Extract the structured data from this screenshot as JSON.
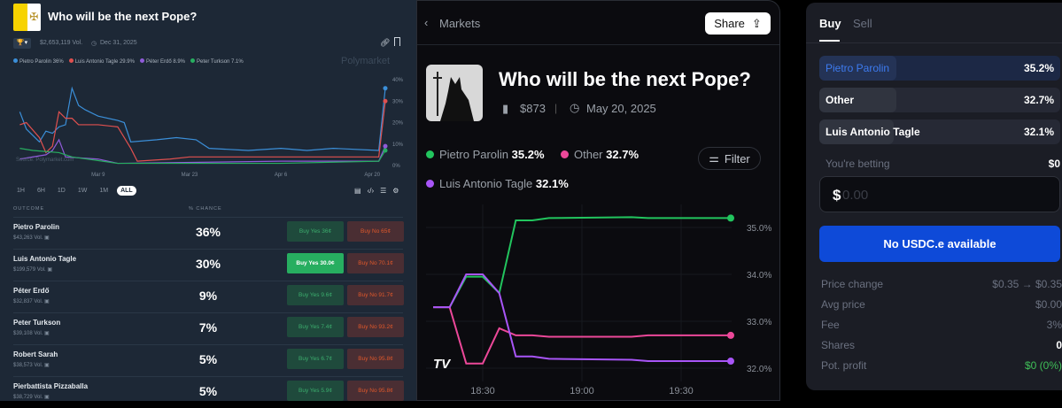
{
  "left": {
    "title": "Who will be the next Pope?",
    "volume": "$2,653,119 Vol.",
    "end_date": "Dec 31, 2025",
    "watermark": "Polymarket",
    "source": "Source: Polymarket.com",
    "legend": [
      {
        "name": "Pietro Parolin 36%",
        "color": "#3b8fd9"
      },
      {
        "name": "Luis Antonio Tagle 29.9%",
        "color": "#e0504f"
      },
      {
        "name": "Péter Erdő 8.9%",
        "color": "#8f5bd9"
      },
      {
        "name": "Peter Turkson 7.1%",
        "color": "#27ae60"
      }
    ],
    "timeframes": [
      "1H",
      "6H",
      "1D",
      "1W",
      "1M",
      "ALL"
    ],
    "active_timeframe": "ALL",
    "col_outcome": "OUTCOME",
    "col_chance": "% CHANCE",
    "rows": [
      {
        "name": "Pietro Parolin",
        "vol": "$43,263 Vol.",
        "chance": "36%",
        "yes": "Buy Yes 36¢",
        "no": "Buy No 65¢"
      },
      {
        "name": "Luis Antonio Tagle",
        "vol": "$199,579 Vol.",
        "chance": "30%",
        "yes": "Buy Yes 30.0¢",
        "no": "Buy No 70.1¢"
      },
      {
        "name": "Péter Erdő",
        "vol": "$32,837 Vol.",
        "chance": "9%",
        "yes": "Buy Yes 9.6¢",
        "no": "Buy No 91.7¢"
      },
      {
        "name": "Peter Turkson",
        "vol": "$39,108 Vol.",
        "chance": "7%",
        "yes": "Buy Yes 7.4¢",
        "no": "Buy No 93.2¢"
      },
      {
        "name": "Robert Sarah",
        "vol": "$38,573 Vol.",
        "chance": "5%",
        "yes": "Buy Yes 6.7¢",
        "no": "Buy No 95.8¢"
      },
      {
        "name": "Pierbattista Pizzaballa",
        "vol": "$38,729 Vol.",
        "chance": "5%",
        "yes": "Buy Yes 5.9¢",
        "no": "Buy No 95.8¢"
      }
    ]
  },
  "middle": {
    "back": "Markets",
    "share": "Share",
    "title": "Who will be the next Pope?",
    "volume": "$873",
    "date": "May 20, 2025",
    "filter": "Filter",
    "legend": [
      {
        "name": "Pietro Parolin",
        "value": "35.2%",
        "color": "#22c55e"
      },
      {
        "name": "Other",
        "value": "32.7%",
        "color": "#ec4899"
      },
      {
        "name": "Luis Antonio Tagle",
        "value": "32.1%",
        "color": "#a855f7"
      }
    ]
  },
  "right": {
    "tabs": [
      "Buy",
      "Sell"
    ],
    "active_tab": "Buy",
    "options": [
      {
        "name": "Pietro Parolin",
        "pct": "35.2%",
        "value": 35.2,
        "selected": true
      },
      {
        "name": "Other",
        "pct": "32.7%",
        "value": 32.7
      },
      {
        "name": "Luis Antonio Tagle",
        "pct": "32.1%",
        "value": 32.1
      }
    ],
    "betting_label": "You're betting",
    "betting_value": "$0",
    "amount_prefix": "$",
    "amount_placeholder": "0.00",
    "cta": "No USDC.e available",
    "stats": [
      {
        "k": "Price change",
        "v": "$0.35 → $0.35"
      },
      {
        "k": "Avg price",
        "v": "$0.00"
      },
      {
        "k": "Fee",
        "v": "3%"
      },
      {
        "k": "Shares",
        "v": "0"
      },
      {
        "k": "Pot. profit",
        "v": "$0 (0%)"
      }
    ]
  },
  "chart_data": [
    {
      "type": "line",
      "xlim": [
        "2025-02-24",
        "2025-04-22"
      ],
      "ylim": [
        0,
        40
      ],
      "yticks": [
        "0%",
        "10%",
        "20%",
        "30%",
        "40%"
      ],
      "xticks": [
        "Mar 9",
        "Mar 23",
        "Apr 6",
        "Apr 20"
      ],
      "series": [
        {
          "name": "Pietro Parolin",
          "color": "#3b8fd9",
          "points": [
            [
              "2025-02-25",
              25
            ],
            [
              "2025-02-26",
              17
            ],
            [
              "2025-02-28",
              11
            ],
            [
              "2025-03-01",
              16
            ],
            [
              "2025-03-02",
              15
            ],
            [
              "2025-03-03",
              18
            ],
            [
              "2025-03-04",
              19
            ],
            [
              "2025-03-05",
              36
            ],
            [
              "2025-03-06",
              28
            ],
            [
              "2025-03-07",
              26
            ],
            [
              "2025-03-09",
              23
            ],
            [
              "2025-03-12",
              21
            ],
            [
              "2025-03-13",
              20
            ],
            [
              "2025-03-14",
              11
            ],
            [
              "2025-03-18",
              12
            ],
            [
              "2025-03-21",
              13
            ],
            [
              "2025-03-24",
              12
            ],
            [
              "2025-03-26",
              8
            ],
            [
              "2025-04-01",
              7
            ],
            [
              "2025-04-06",
              8
            ],
            [
              "2025-04-10",
              7
            ],
            [
              "2025-04-14",
              8
            ],
            [
              "2025-04-21",
              7
            ],
            [
              "2025-04-22",
              36
            ]
          ]
        },
        {
          "name": "Luis Antonio Tagle",
          "color": "#e0504f",
          "points": [
            [
              "2025-02-25",
              19
            ],
            [
              "2025-02-26",
              20
            ],
            [
              "2025-02-28",
              13
            ],
            [
              "2025-03-01",
              6
            ],
            [
              "2025-03-02",
              9
            ],
            [
              "2025-03-03",
              25
            ],
            [
              "2025-03-04",
              22
            ],
            [
              "2025-03-05",
              22
            ],
            [
              "2025-03-06",
              19
            ],
            [
              "2025-03-09",
              19
            ],
            [
              "2025-03-12",
              18
            ],
            [
              "2025-03-14",
              8
            ],
            [
              "2025-03-15",
              2
            ],
            [
              "2025-03-20",
              3
            ],
            [
              "2025-03-23",
              4
            ],
            [
              "2025-04-06",
              4
            ],
            [
              "2025-04-21",
              4
            ],
            [
              "2025-04-22",
              30
            ]
          ]
        },
        {
          "name": "Péter Erdő",
          "color": "#8f5bd9",
          "points": [
            [
              "2025-02-25",
              3
            ],
            [
              "2025-03-01",
              5
            ],
            [
              "2025-03-02",
              7
            ],
            [
              "2025-03-03",
              12
            ],
            [
              "2025-03-04",
              4
            ],
            [
              "2025-03-09",
              3
            ],
            [
              "2025-03-12",
              1
            ],
            [
              "2025-04-06",
              2
            ],
            [
              "2025-04-21",
              2
            ],
            [
              "2025-04-22",
              9
            ]
          ]
        },
        {
          "name": "Peter Turkson",
          "color": "#27ae60",
          "points": [
            [
              "2025-02-25",
              8
            ],
            [
              "2025-02-27",
              7
            ],
            [
              "2025-03-03",
              6
            ],
            [
              "2025-03-05",
              4
            ],
            [
              "2025-03-12",
              1
            ],
            [
              "2025-04-06",
              1
            ],
            [
              "2025-04-21",
              2
            ],
            [
              "2025-04-22",
              7
            ]
          ]
        }
      ]
    },
    {
      "type": "line",
      "xlim": [
        "18:10",
        "19:50"
      ],
      "ylim": [
        31.8,
        35.5
      ],
      "yticks": [
        "32.0%",
        "33.0%",
        "34.0%",
        "35.0%"
      ],
      "xticks": [
        "18:30",
        "19:00",
        "19:30"
      ],
      "series": [
        {
          "name": "Pietro Parolin",
          "color": "#22c55e",
          "points": [
            [
              "18:15",
              33.3
            ],
            [
              "18:20",
              33.3
            ],
            [
              "18:25",
              33.95
            ],
            [
              "18:30",
              33.95
            ],
            [
              "18:35",
              33.6
            ],
            [
              "18:40",
              35.15
            ],
            [
              "18:45",
              35.15
            ],
            [
              "18:50",
              35.2
            ],
            [
              "19:15",
              35.22
            ],
            [
              "19:20",
              35.2
            ],
            [
              "19:45",
              35.2
            ]
          ]
        },
        {
          "name": "Other",
          "color": "#ec4899",
          "points": [
            [
              "18:15",
              33.3
            ],
            [
              "18:20",
              33.3
            ],
            [
              "18:25",
              32.1
            ],
            [
              "18:30",
              32.1
            ],
            [
              "18:35",
              32.85
            ],
            [
              "18:40",
              32.7
            ],
            [
              "18:45",
              32.7
            ],
            [
              "18:50",
              32.67
            ],
            [
              "19:15",
              32.67
            ],
            [
              "19:20",
              32.7
            ],
            [
              "19:45",
              32.7
            ]
          ]
        },
        {
          "name": "Luis Antonio Tagle",
          "color": "#a855f7",
          "points": [
            [
              "18:15",
              33.3
            ],
            [
              "18:20",
              33.3
            ],
            [
              "18:25",
              34.0
            ],
            [
              "18:30",
              34.0
            ],
            [
              "18:35",
              33.6
            ],
            [
              "18:40",
              32.25
            ],
            [
              "18:45",
              32.25
            ],
            [
              "18:50",
              32.2
            ],
            [
              "19:15",
              32.18
            ],
            [
              "19:20",
              32.15
            ],
            [
              "19:45",
              32.15
            ]
          ]
        }
      ]
    }
  ]
}
